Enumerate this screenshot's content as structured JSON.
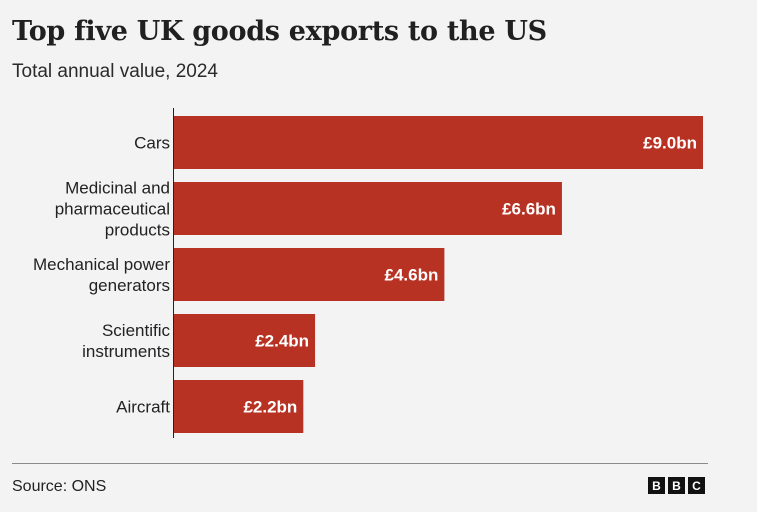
{
  "chart_data": {
    "type": "bar",
    "orientation": "horizontal",
    "title": "Top five UK goods exports to the US",
    "subtitle": "Total annual value, 2024",
    "categories": [
      [
        "Cars"
      ],
      [
        "Medicinal and",
        "pharmaceutical",
        "products"
      ],
      [
        "Mechanical power",
        "generators"
      ],
      [
        "Scientific",
        "instruments"
      ],
      [
        "Aircraft"
      ]
    ],
    "values": [
      9.0,
      6.6,
      4.6,
      2.4,
      2.2
    ],
    "value_labels": [
      "£9.0bn",
      "£6.6bn",
      "£4.6bn",
      "£2.4bn",
      "£2.2bn"
    ],
    "xlim": [
      0,
      9.0
    ],
    "bar_color": "#b83224",
    "grid": false,
    "legend": "none"
  },
  "footer": {
    "source": "Source: ONS",
    "logo": [
      "B",
      "B",
      "C"
    ]
  }
}
